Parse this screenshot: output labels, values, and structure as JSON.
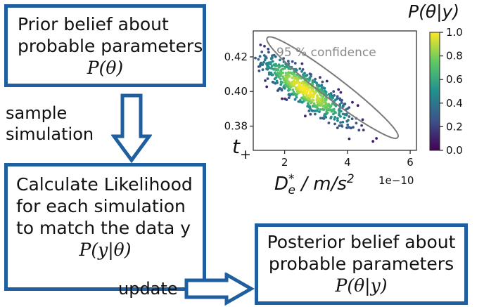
{
  "boxes": {
    "prior": {
      "line1": "Prior belief about",
      "line2": "probable parameters",
      "formula": "P(θ)"
    },
    "likelihood": {
      "line1": "Calculate Likelihood",
      "line2": "for each simulation",
      "line3": "to match the data y",
      "formula": "P(y|θ)"
    },
    "posterior": {
      "line1": "Posterior belief about",
      "line2": "probable parameters",
      "formula": "P(θ|y)"
    }
  },
  "arrows": {
    "sample_label": [
      "sample",
      "simulation"
    ],
    "update_label": "update"
  },
  "colors": {
    "box_border": "#1f5fa0",
    "ellipse": "#7a7a7a"
  },
  "chart_data": {
    "type": "scatter",
    "title": "",
    "annotation": "95 % confidence",
    "xlabel": "D*_e / m/s²",
    "ylabel": "t+",
    "x_multiplier": "1e−10",
    "xlim": [
      1.0,
      6.2
    ],
    "ylim": [
      0.366,
      0.435
    ],
    "xticks": [
      2,
      4,
      6
    ],
    "xtick_labels": [
      "2",
      "4",
      "6"
    ],
    "yticks": [
      0.38,
      0.4,
      0.42
    ],
    "ytick_labels": [
      "0.38",
      "0.40",
      "0.42"
    ],
    "grid": false,
    "colorbar": {
      "label": "P(θ|y)",
      "range": [
        0.0,
        1.0
      ],
      "ticks": [
        0.0,
        0.2,
        0.4,
        0.6,
        0.8,
        1.0
      ],
      "tick_labels": [
        "0.0",
        "0.2",
        "0.4",
        "0.6",
        "0.8",
        "1.0"
      ],
      "colormap": "viridis"
    },
    "point_cloud": {
      "n_points": 650,
      "mean": [
        2.65,
        0.401
      ],
      "sd_x": 0.78,
      "sd_y": 0.0108,
      "correlation": -0.86
    },
    "confidence_ellipse": {
      "level": 0.95,
      "upper_left": [
        1.45,
        0.431
      ],
      "lower_right": [
        5.6,
        0.3735
      ]
    }
  }
}
